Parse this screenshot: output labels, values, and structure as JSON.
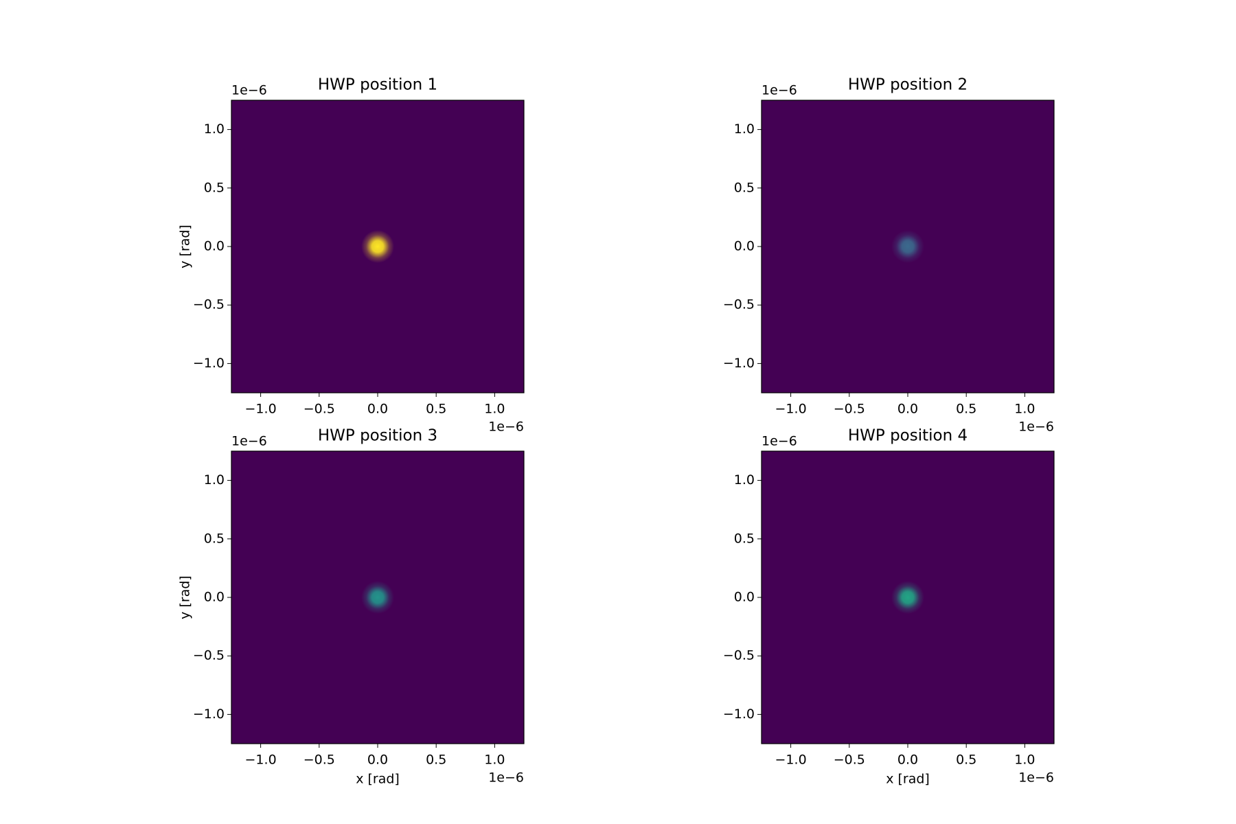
{
  "chart_data": [
    {
      "type": "image",
      "title": "HWP position 1",
      "ylabel": "y [rad]",
      "x_offset_text": "1e−6",
      "y_offset_text": "1e−6",
      "background": "#440154",
      "peak": {
        "x": 0,
        "y": 0,
        "color": "#fde725"
      },
      "xlim": [
        -1.25e-06,
        1.25e-06
      ],
      "ylim": [
        -1.25e-06,
        1.25e-06
      ],
      "xticks": [
        {
          "value": -1e-06,
          "label": "−1.0"
        },
        {
          "value": -5e-07,
          "label": "−0.5"
        },
        {
          "value": 0,
          "label": "0.0"
        },
        {
          "value": 5e-07,
          "label": "0.5"
        },
        {
          "value": 1e-06,
          "label": "1.0"
        }
      ],
      "yticks": [
        {
          "value": -1e-06,
          "label": "−1.0"
        },
        {
          "value": -5e-07,
          "label": "−0.5"
        },
        {
          "value": 0,
          "label": "0.0"
        },
        {
          "value": 5e-07,
          "label": "0.5"
        },
        {
          "value": 1e-06,
          "label": "1.0"
        }
      ]
    },
    {
      "type": "image",
      "title": "HWP position 2",
      "x_offset_text": "1e−6",
      "y_offset_text": "1e−6",
      "background": "#440154",
      "peak": {
        "x": 0,
        "y": 0,
        "color": "#3b6a8d"
      },
      "xlim": [
        -1.25e-06,
        1.25e-06
      ],
      "ylim": [
        -1.25e-06,
        1.25e-06
      ],
      "xticks": [
        {
          "value": -1e-06,
          "label": "−1.0"
        },
        {
          "value": -5e-07,
          "label": "−0.5"
        },
        {
          "value": 0,
          "label": "0.0"
        },
        {
          "value": 5e-07,
          "label": "0.5"
        },
        {
          "value": 1e-06,
          "label": "1.0"
        }
      ],
      "yticks": [
        {
          "value": -1e-06,
          "label": "−1.0"
        },
        {
          "value": -5e-07,
          "label": "−0.5"
        },
        {
          "value": 0,
          "label": "0.0"
        },
        {
          "value": 5e-07,
          "label": "0.5"
        },
        {
          "value": 1e-06,
          "label": "1.0"
        }
      ]
    },
    {
      "type": "image",
      "title": "HWP position 3",
      "xlabel": "x [rad]",
      "ylabel": "y [rad]",
      "x_offset_text": "1e−6",
      "y_offset_text": "1e−6",
      "background": "#440154",
      "peak": {
        "x": 0,
        "y": 0,
        "color": "#23948b"
      },
      "xlim": [
        -1.25e-06,
        1.25e-06
      ],
      "ylim": [
        -1.25e-06,
        1.25e-06
      ],
      "xticks": [
        {
          "value": -1e-06,
          "label": "−1.0"
        },
        {
          "value": -5e-07,
          "label": "−0.5"
        },
        {
          "value": 0,
          "label": "0.0"
        },
        {
          "value": 5e-07,
          "label": "0.5"
        },
        {
          "value": 1e-06,
          "label": "1.0"
        }
      ],
      "yticks": [
        {
          "value": -1e-06,
          "label": "−1.0"
        },
        {
          "value": -5e-07,
          "label": "−0.5"
        },
        {
          "value": 0,
          "label": "0.0"
        },
        {
          "value": 5e-07,
          "label": "0.5"
        },
        {
          "value": 1e-06,
          "label": "1.0"
        }
      ]
    },
    {
      "type": "image",
      "title": "HWP position 4",
      "xlabel": "x [rad]",
      "x_offset_text": "1e−6",
      "y_offset_text": "1e−6",
      "background": "#440154",
      "peak": {
        "x": 0,
        "y": 0,
        "color": "#22a585"
      },
      "xlim": [
        -1.25e-06,
        1.25e-06
      ],
      "ylim": [
        -1.25e-06,
        1.25e-06
      ],
      "xticks": [
        {
          "value": -1e-06,
          "label": "−1.0"
        },
        {
          "value": -5e-07,
          "label": "−0.5"
        },
        {
          "value": 0,
          "label": "0.0"
        },
        {
          "value": 5e-07,
          "label": "0.5"
        },
        {
          "value": 1e-06,
          "label": "1.0"
        }
      ],
      "yticks": [
        {
          "value": -1e-06,
          "label": "−1.0"
        },
        {
          "value": -5e-07,
          "label": "−0.5"
        },
        {
          "value": 0,
          "label": "0.0"
        },
        {
          "value": 5e-07,
          "label": "0.5"
        },
        {
          "value": 1e-06,
          "label": "1.0"
        }
      ]
    }
  ]
}
